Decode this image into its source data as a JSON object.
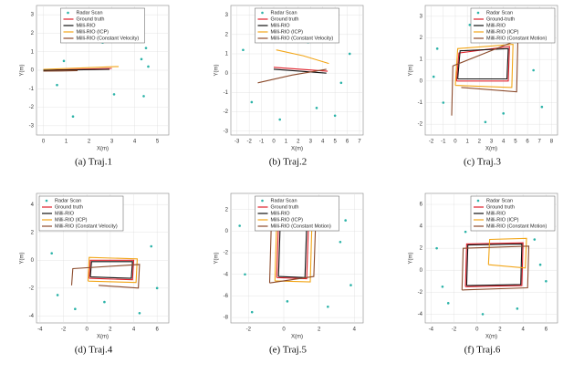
{
  "chart_data": [
    {
      "type": "line",
      "caption": "(a) Traj.1",
      "xlabel": "X(m)",
      "ylabel": "Y(m)",
      "xlim": [
        -0.3,
        5.5
      ],
      "ylim": [
        -3.5,
        3.5
      ],
      "xticks": [
        0,
        1,
        2,
        3,
        4,
        5
      ],
      "yticks": [
        -3,
        -2,
        -1,
        0,
        1,
        2,
        3
      ],
      "grid": true,
      "legend": "upper center",
      "series": [
        {
          "name": "Radar Scan",
          "type": "scatter",
          "color": "#2bb3a8",
          "x": [
            4.3,
            4.5,
            4.4,
            0.6,
            0.9,
            3.1,
            4.6,
            2.6,
            1.3,
            4.2
          ],
          "values": [
            0.6,
            1.2,
            -1.4,
            -0.8,
            0.5,
            -1.3,
            0.2,
            1.5,
            -2.5,
            2.2
          ]
        },
        {
          "name": "Ground truth",
          "color": "#e0202a",
          "x": [
            0,
            1.5,
            3.0
          ],
          "values": [
            0,
            0.05,
            0.1
          ]
        },
        {
          "name": "Milli-RIO",
          "color": "#111111",
          "x": [
            0,
            1.5,
            2.9
          ],
          "values": [
            0,
            0.02,
            0.05
          ]
        },
        {
          "name": "Milli-RIO (ICP)",
          "color": "#f2a516",
          "x": [
            0,
            1.6,
            3.3
          ],
          "values": [
            0.05,
            0.12,
            0.2
          ]
        },
        {
          "name": "Milli-RIO (Constant Velocity)",
          "color": "#8b4a2b",
          "x": [
            0,
            0.8,
            1.5
          ],
          "values": [
            -0.05,
            -0.04,
            -0.02
          ]
        }
      ]
    },
    {
      "type": "line",
      "caption": "(b) Traj.2",
      "xlabel": "X(m)",
      "ylabel": "Y(m)",
      "xlim": [
        -3.5,
        7.3
      ],
      "ylim": [
        -3.2,
        3.5
      ],
      "xticks": [
        -3,
        -2,
        -1,
        0,
        1,
        2,
        3,
        4,
        5,
        6,
        7
      ],
      "yticks": [
        -3,
        -2,
        -1,
        0,
        1,
        2,
        3
      ],
      "grid": true,
      "legend": "upper center",
      "series": [
        {
          "name": "Radar Scan",
          "type": "scatter",
          "color": "#2bb3a8",
          "x": [
            -2.5,
            -1.8,
            1.5,
            2.8,
            5.5,
            6.2,
            -1.0,
            3.5,
            0.5,
            5.0
          ],
          "values": [
            1.2,
            -1.5,
            2.0,
            1.6,
            -0.5,
            1.0,
            2.5,
            -1.8,
            -2.4,
            -2.2
          ]
        },
        {
          "name": "Ground truth",
          "color": "#e0202a",
          "x": [
            0,
            2.2,
            4.4
          ],
          "values": [
            0.3,
            0.2,
            0.1
          ]
        },
        {
          "name": "Milli-RIO",
          "color": "#111111",
          "x": [
            0,
            2.2,
            4.3
          ],
          "values": [
            0.2,
            0.1,
            0.0
          ]
        },
        {
          "name": "Milli-RIO (ICP)",
          "color": "#f2a516",
          "x": [
            0.2,
            2.4,
            4.5
          ],
          "values": [
            1.2,
            0.9,
            0.5
          ]
        },
        {
          "name": "Milli-RIO (Constant Velocity)",
          "color": "#8b4a2b",
          "x": [
            -1.3,
            1.5,
            4.3
          ],
          "values": [
            -0.5,
            -0.1,
            0.2
          ]
        }
      ]
    },
    {
      "type": "line",
      "caption": "(c) Traj.3",
      "xlabel": "X(m)",
      "ylabel": "Y(m)",
      "xlim": [
        -2.5,
        8.5
      ],
      "ylim": [
        -2.5,
        3.5
      ],
      "xticks": [
        -2,
        -1,
        0,
        1,
        2,
        3,
        4,
        5,
        6,
        7,
        8
      ],
      "yticks": [
        -2,
        -1,
        0,
        1,
        2,
        3
      ],
      "grid": true,
      "legend": "upper right",
      "series": [
        {
          "name": "Radar Scan",
          "type": "scatter",
          "color": "#2bb3a8",
          "x": [
            -1.5,
            -1.0,
            1.2,
            3.5,
            6.5,
            7.2,
            2.5,
            6.0,
            -1.8,
            4.0
          ],
          "values": [
            1.5,
            -1.0,
            2.6,
            2.7,
            0.5,
            -1.2,
            -1.9,
            2.2,
            0.2,
            -1.5
          ]
        },
        {
          "name": "Ground-truth",
          "color": "#e0202a",
          "x": [
            0.1,
            0.3,
            4.5,
            4.4,
            0.1
          ],
          "values": [
            0,
            1.3,
            1.6,
            0,
            0
          ]
        },
        {
          "name": "Milli-RIO",
          "color": "#111111",
          "x": [
            0.2,
            0.4,
            4.4,
            4.3,
            0.2
          ],
          "values": [
            0.1,
            1.4,
            1.5,
            0.1,
            0.1
          ]
        },
        {
          "name": "Milli-RIO (ICP)",
          "color": "#f2a516",
          "x": [
            0,
            0.2,
            4.8,
            4.7,
            0
          ],
          "values": [
            -0.2,
            1.5,
            1.7,
            -0.3,
            -0.2
          ]
        },
        {
          "name": "Milli-RIO (Constant Motion)",
          "color": "#8b4a2b",
          "x": [
            -0.3,
            -0.2,
            5.2,
            5.1,
            0.5
          ],
          "values": [
            -1.6,
            0.7,
            1.9,
            -0.5,
            -0.3
          ]
        }
      ]
    },
    {
      "type": "line",
      "caption": "(d) Traj.4",
      "xlabel": "X(m)",
      "ylabel": "Y(m)",
      "xlim": [
        -4.3,
        7
      ],
      "ylim": [
        -4.5,
        4.8
      ],
      "xticks": [
        -4,
        -2,
        0,
        2,
        4,
        6
      ],
      "yticks": [
        -4,
        -2,
        0,
        2,
        4
      ],
      "grid": true,
      "legend": "upper left",
      "series": [
        {
          "name": "Radar Scan",
          "type": "scatter",
          "color": "#2bb3a8",
          "x": [
            -3.5,
            -2.5,
            0.5,
            2.5,
            5.5,
            6.0,
            -1.0,
            4.5,
            1.5,
            -3.0
          ],
          "values": [
            2.5,
            -2.5,
            3.5,
            3.0,
            1.0,
            -2.0,
            -3.5,
            -3.8,
            -3.0,
            0.5
          ]
        },
        {
          "name": "Ground truth",
          "color": "#e0202a",
          "x": [
            0.2,
            0.3,
            4.0,
            3.9,
            0.2
          ],
          "values": [
            -1.3,
            0,
            0,
            -1.4,
            -1.3
          ]
        },
        {
          "name": "Milli-RIO",
          "color": "#111111",
          "x": [
            0.3,
            0.4,
            3.9,
            3.8,
            0.3
          ],
          "values": [
            -1.2,
            -0.1,
            -0.1,
            -1.3,
            -1.2
          ]
        },
        {
          "name": "Milli-RIO (ICP)",
          "color": "#f2a516",
          "x": [
            0.1,
            0.2,
            4.3,
            4.2,
            0.1
          ],
          "values": [
            -1.5,
            0.2,
            0.1,
            -1.6,
            -1.5
          ]
        },
        {
          "name": "Milli-RIO (Constant Velocity)",
          "color": "#8b4a2b",
          "x": [
            -1.3,
            -1.2,
            4.5,
            4.4,
            1.0
          ],
          "values": [
            -1.8,
            -0.6,
            -0.3,
            -2.0,
            -1.8
          ]
        }
      ]
    },
    {
      "type": "line",
      "caption": "(e) Traj.5",
      "xlabel": "X(m)",
      "ylabel": "Y(m)",
      "xlim": [
        -3,
        4.5
      ],
      "ylim": [
        -8.5,
        3.5
      ],
      "xticks": [
        -2,
        0,
        2,
        4
      ],
      "yticks": [
        -8,
        -6,
        -4,
        -2,
        0,
        2
      ],
      "grid": true,
      "legend": "upper center",
      "series": [
        {
          "name": "Radar Scan",
          "type": "scatter",
          "color": "#2bb3a8",
          "x": [
            -2.5,
            -2.2,
            -0.5,
            1.0,
            3.2,
            3.8,
            2.5,
            -1.8,
            0.2,
            3.5
          ],
          "values": [
            0.5,
            -4.0,
            1.8,
            2.2,
            -1.0,
            -5.0,
            -7.0,
            -7.5,
            -6.5,
            1.0
          ]
        },
        {
          "name": "Ground truth",
          "color": "#e0202a",
          "x": [
            -0.4,
            -0.3,
            1.4,
            1.3,
            -0.4
          ],
          "values": [
            -4.3,
            0.8,
            0.7,
            -4.4,
            -4.3
          ]
        },
        {
          "name": "Milli-RIO",
          "color": "#111111",
          "x": [
            -0.3,
            -0.2,
            1.3,
            1.2,
            -0.3
          ],
          "values": [
            -4.2,
            0.7,
            0.6,
            -4.3,
            -4.2
          ]
        },
        {
          "name": "Milli-RIO (ICP)",
          "color": "#f2a516",
          "x": [
            -0.5,
            -0.4,
            1.6,
            1.5,
            -0.5
          ],
          "values": [
            -4.6,
            1.0,
            0.9,
            -4.7,
            -4.6
          ]
        },
        {
          "name": "Milli-RIO (Constant Motion)",
          "color": "#8b4a2b",
          "x": [
            -0.8,
            -0.7,
            1.8,
            1.7,
            -0.8
          ],
          "values": [
            -4.8,
            1.2,
            0.6,
            -4.2,
            -4.8
          ]
        }
      ]
    },
    {
      "type": "line",
      "caption": "(f) Traj.6",
      "xlabel": "X(m)",
      "ylabel": "Y(m)",
      "xlim": [
        -4.5,
        7
      ],
      "ylim": [
        -4.8,
        7
      ],
      "xticks": [
        -4,
        -2,
        0,
        2,
        4,
        6
      ],
      "yticks": [
        -4,
        -2,
        0,
        2,
        4,
        6
      ],
      "grid": true,
      "legend": "upper right",
      "series": [
        {
          "name": "Radar Scan",
          "type": "scatter",
          "color": "#2bb3a8",
          "x": [
            -3.5,
            -3.0,
            -1.0,
            1.5,
            5.0,
            6.0,
            3.5,
            -2.5,
            0.5,
            5.5
          ],
          "values": [
            2.0,
            -1.5,
            3.5,
            4.0,
            2.8,
            -1.0,
            -3.5,
            -3.0,
            -4.0,
            0.5
          ]
        },
        {
          "name": "Ground truth",
          "color": "#e0202a",
          "x": [
            -1.0,
            -0.9,
            4.0,
            3.9,
            -1.0
          ],
          "values": [
            -1.5,
            2.4,
            2.5,
            -1.4,
            -1.5
          ]
        },
        {
          "name": "Milli-RIO",
          "color": "#111111",
          "x": [
            -0.9,
            -0.8,
            3.9,
            3.8,
            -0.9
          ],
          "values": [
            -1.4,
            2.3,
            2.4,
            -1.3,
            -1.4
          ]
        },
        {
          "name": "Milli-RIO (ICP)",
          "color": "#f2a516",
          "x": [
            1.0,
            1.1,
            4.3,
            4.2,
            1.0
          ],
          "values": [
            0.5,
            2.8,
            2.9,
            0.2,
            0.5
          ]
        },
        {
          "name": "Milli-RIO (Constant Motion)",
          "color": "#8b4a2b",
          "x": [
            -1.3,
            -1.2,
            4.5,
            4.4,
            -1.3
          ],
          "values": [
            -1.8,
            2.0,
            2.2,
            -1.6,
            -1.8
          ]
        }
      ]
    }
  ]
}
